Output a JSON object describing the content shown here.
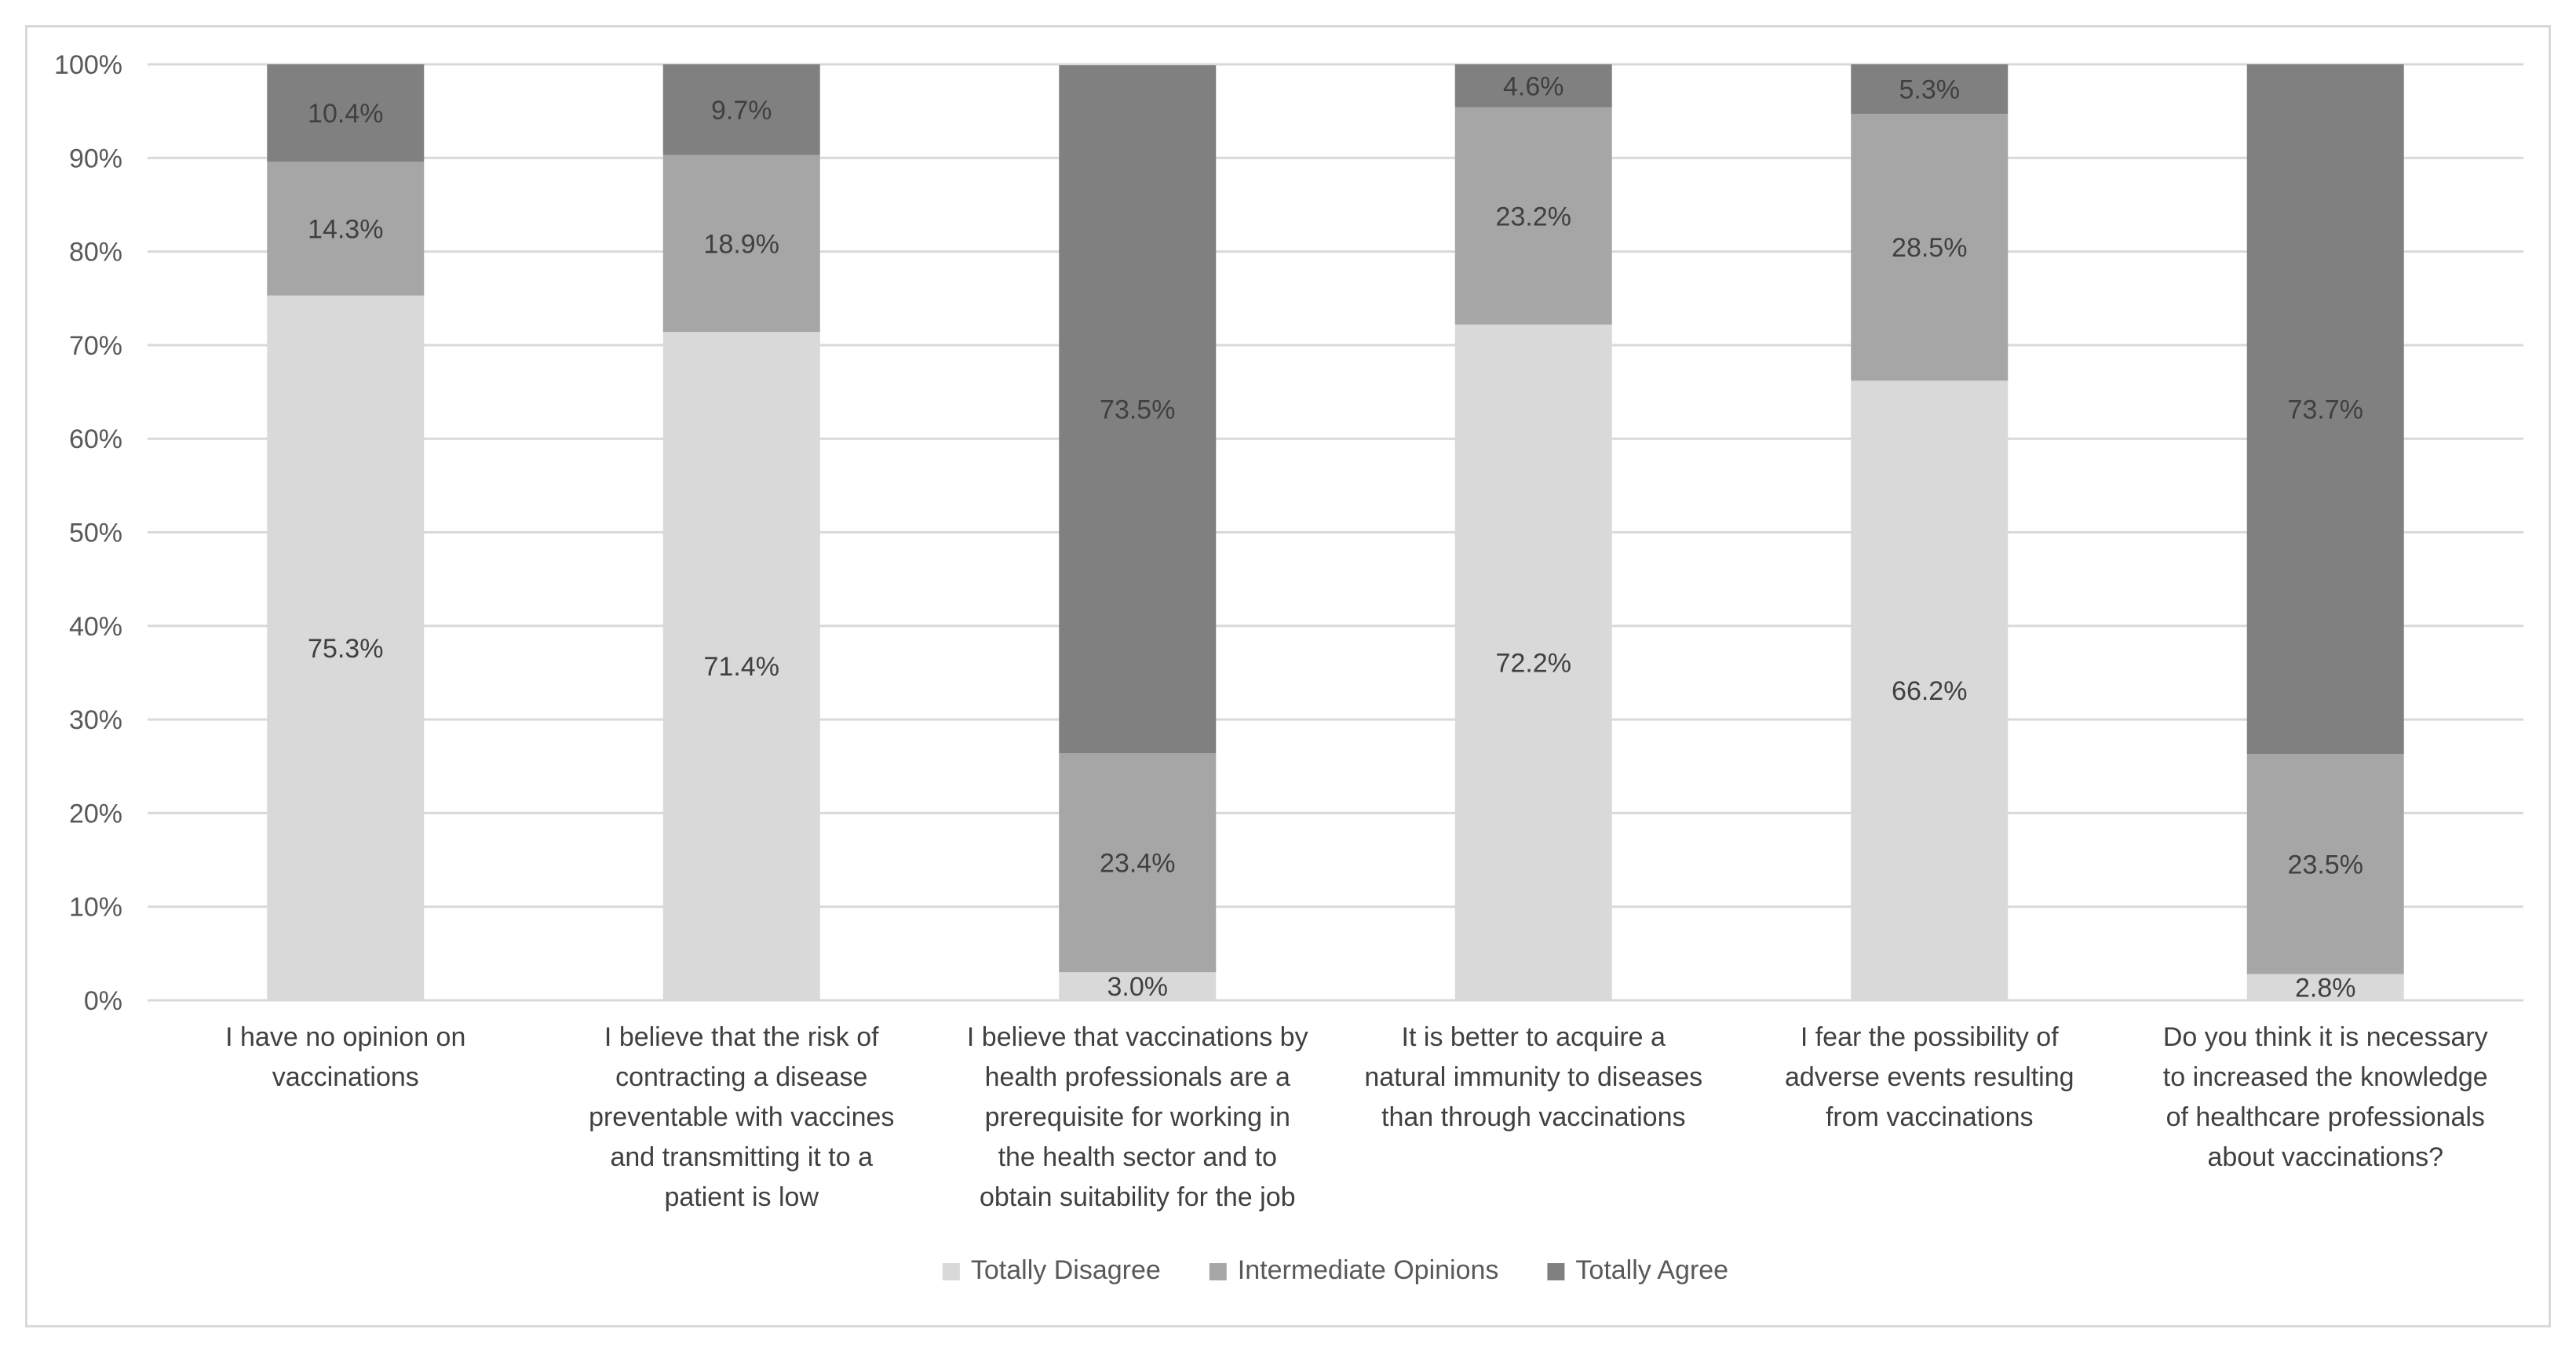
{
  "chart_data": {
    "type": "bar",
    "stacked": true,
    "percent_stacked": true,
    "title": "",
    "xlabel": "",
    "ylabel": "",
    "ylim": [
      0,
      100
    ],
    "y_ticks": [
      "0%",
      "10%",
      "20%",
      "30%",
      "40%",
      "50%",
      "60%",
      "70%",
      "80%",
      "90%",
      "100%"
    ],
    "grid": true,
    "legend_position": "bottom",
    "categories": [
      [
        "I have no opinion on",
        "vaccinations"
      ],
      [
        "I believe that the risk of",
        "contracting a disease",
        "preventable with vaccines",
        "and transmitting it to a",
        "patient is low"
      ],
      [
        "I believe that vaccinations by",
        "health professionals are a",
        "prerequisite for working in",
        "the health sector and to",
        "obtain suitability for the job"
      ],
      [
        "It is better to acquire a",
        "natural immunity to diseases",
        "than through  vaccinations"
      ],
      [
        "I fear the possibility of",
        "adverse events resulting",
        "from vaccinations"
      ],
      [
        "Do you think it is necessary",
        "to increased the knowledge",
        "of healthcare professionals",
        "about vaccinations?"
      ]
    ],
    "series": [
      {
        "name": "Totally Disagree",
        "color": "#d9d9d9",
        "values": [
          75.3,
          71.4,
          3.0,
          72.2,
          66.2,
          2.8
        ],
        "labels": [
          "75.3%",
          "71.4%",
          "3.0%",
          "72.2%",
          "66.2%",
          "2.8%"
        ]
      },
      {
        "name": "Intermediate Opinions",
        "color": "#a6a6a6",
        "values": [
          14.3,
          18.9,
          23.4,
          23.2,
          28.5,
          23.5
        ],
        "labels": [
          "14.3%",
          "18.9%",
          "23.4%",
          "23.2%",
          "28.5%",
          "23.5%"
        ]
      },
      {
        "name": "Totally Agree",
        "color": "#808080",
        "values": [
          10.4,
          9.7,
          73.5,
          4.6,
          5.3,
          73.7
        ],
        "labels": [
          "10.4%",
          "9.7%",
          "73.5%",
          "4.6%",
          "5.3%",
          "73.7%"
        ]
      }
    ]
  }
}
